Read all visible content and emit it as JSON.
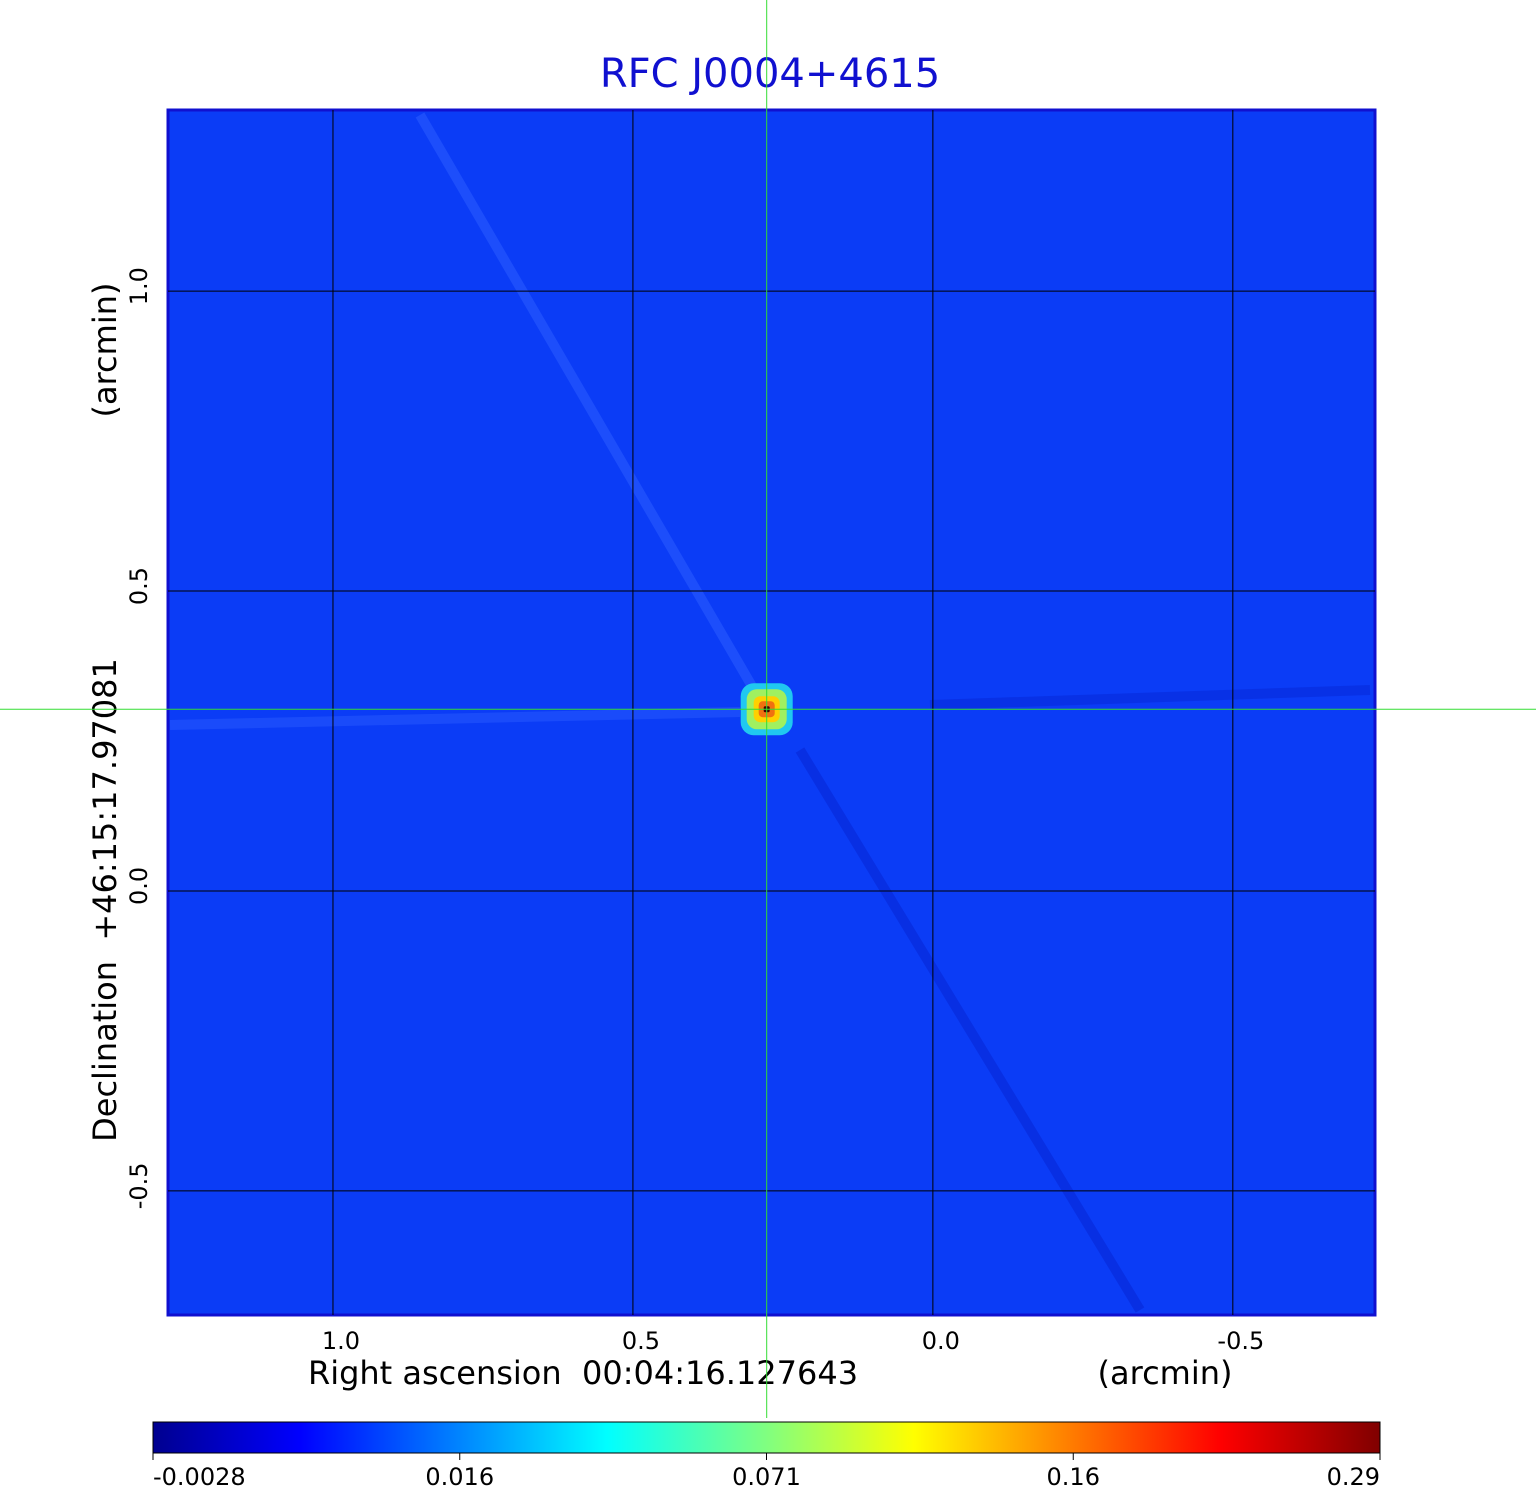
{
  "chart_data": {
    "type": "image",
    "title": "RFC J0004+4615",
    "x_label": "Right ascension  00:04:16.127643",
    "x_unit": "(arcmin)",
    "y_label": "Declination  +46:15:17.97081",
    "y_unit": "(arcmin)",
    "xlim": [
      1.275,
      -0.737
    ],
    "ylim": [
      -0.707,
      1.302
    ],
    "xticks": [
      {
        "value": 1,
        "label": "1.0"
      },
      0.5,
      {
        "value": 0,
        "label": "0.0"
      },
      -0.5
    ],
    "yticks": [
      -0.5,
      {
        "value": 0,
        "label": "0.0"
      },
      0.5,
      {
        "value": 1,
        "label": "1.0"
      }
    ],
    "grid": true,
    "source": {
      "x": 0.277,
      "y": 0.303
    },
    "colorbar_ticks": [
      -0.0028,
      0.016,
      0.071,
      0.16,
      0.29
    ]
  }
}
